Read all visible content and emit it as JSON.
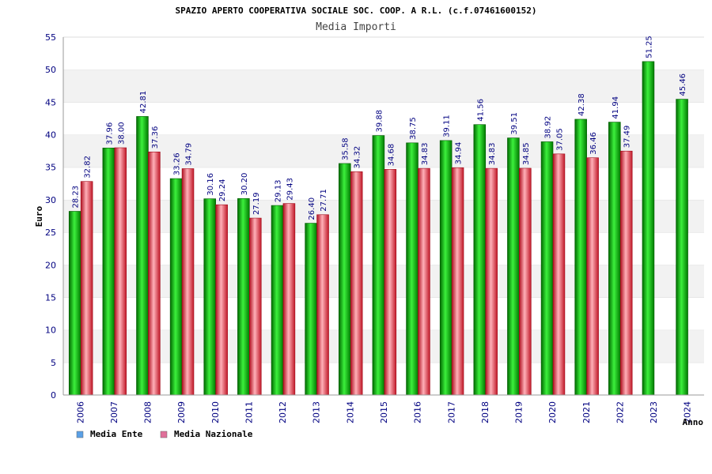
{
  "chart_data": {
    "type": "bar",
    "title": "SPAZIO APERTO COOPERATIVA SOCIALE SOC. COOP. A R.L. (c.f.07461600152)",
    "subtitle": "Media Importi",
    "xlabel": "Anno",
    "ylabel": "Euro",
    "ylim": [
      0,
      55
    ],
    "ytick_step": 5,
    "grid": true,
    "legend_position": "bottom-left",
    "categories": [
      "2006",
      "2007",
      "2008",
      "2009",
      "2010",
      "2011",
      "2012",
      "2013",
      "2014",
      "2015",
      "2016",
      "2017",
      "2018",
      "2019",
      "2020",
      "2021",
      "2022",
      "2023",
      "2024"
    ],
    "series": [
      {
        "name": "Media Ente",
        "legend_color": "#5aa0e6",
        "bar_color": "#00b000",
        "values": [
          28.23,
          37.96,
          42.81,
          33.26,
          30.16,
          30.2,
          29.13,
          26.4,
          35.58,
          39.88,
          38.75,
          39.11,
          41.56,
          39.51,
          38.92,
          42.38,
          41.94,
          51.25,
          45.46
        ],
        "labels": [
          "28.23",
          "37.96",
          "42.81",
          "33.26",
          "30.16",
          "30.20",
          "29.13",
          "26.40",
          "35.58",
          "39.88",
          "38.75",
          "39.11",
          "41.56",
          "39.51",
          "38.92",
          "42.38",
          "41.94",
          "51.25",
          "45.46"
        ]
      },
      {
        "name": "Media Nazionale",
        "legend_color": "#e0709a",
        "bar_color": "#e03040",
        "values": [
          32.82,
          38.0,
          37.36,
          34.79,
          29.24,
          27.19,
          29.43,
          27.71,
          34.32,
          34.68,
          34.83,
          34.94,
          34.83,
          34.85,
          37.05,
          36.46,
          37.49,
          null,
          null
        ],
        "labels": [
          "32.82",
          "38.00",
          "37.36",
          "34.79",
          "29.24",
          "27.19",
          "29.43",
          "27.71",
          "34.32",
          "34.68",
          "34.83",
          "34.94",
          "34.83",
          "34.85",
          "37.05",
          "36.46",
          "37.49",
          null,
          null
        ]
      }
    ]
  }
}
